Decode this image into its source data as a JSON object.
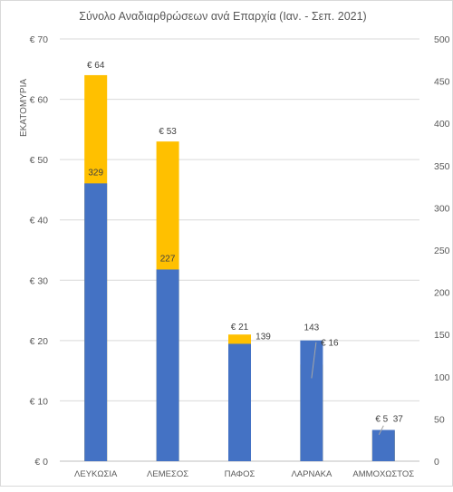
{
  "chart_data": {
    "type": "bar",
    "title": "Σύνολο Αναδιαρθρώσεων ανά Επαρχία (Ιαν. - Σεπ. 2021)",
    "ylabel": "ΕΚΑΤΟΜΥΡΙΑ",
    "categories": [
      "ΛΕΥΚΩΣΙΑ",
      "ΛΕΜΕΣΟΣ",
      "ΠΑΦΟΣ",
      "ΛΑΡΝΑΚΑ",
      "ΑΜΜΟΧΩΣΤΟΣ"
    ],
    "y_left": {
      "min": 0,
      "max": 70,
      "step": 10,
      "tick_labels": [
        "€ 0",
        "€ 10",
        "€ 20",
        "€ 30",
        "€ 40",
        "€ 50",
        "€ 60",
        "€ 70"
      ]
    },
    "y_right": {
      "min": 0,
      "max": 500,
      "step": 50,
      "tick_labels": [
        "0",
        "50",
        "100",
        "150",
        "200",
        "250",
        "300",
        "350",
        "400",
        "450",
        "500"
      ]
    },
    "amount_series": {
      "color": "#FFC000",
      "axis": "left",
      "values": [
        64,
        53,
        21,
        16,
        5
      ],
      "labels": [
        "€ 64",
        "€ 53",
        "€ 21",
        "€ 16",
        "€ 5"
      ]
    },
    "count_series": {
      "color": "#4472C4",
      "axis": "right",
      "values": [
        329,
        227,
        139,
        143,
        37
      ],
      "labels": [
        "329",
        "227",
        "139",
        "143",
        "37"
      ]
    },
    "grid": true,
    "legend": "none"
  }
}
